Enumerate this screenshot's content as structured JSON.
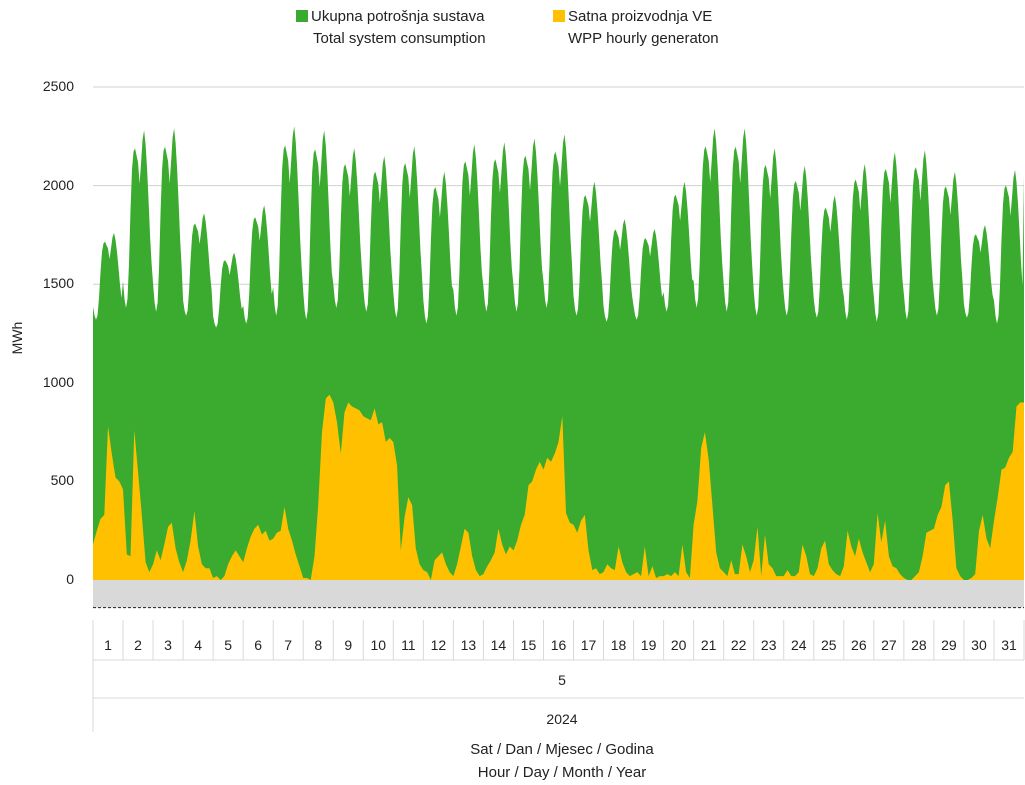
{
  "legend": [
    {
      "swatch_color": "#3aab2e",
      "line1": "Ukupna potrošnja sustava",
      "line2": "Total system consumption"
    },
    {
      "swatch_color": "#ffc000",
      "line1": "Satna proizvodnja VE",
      "line2": "WPP hourly generaton"
    }
  ],
  "chart_data": {
    "type": "area",
    "title": "",
    "ylabel": "MWh",
    "xlabel_line1": "Sat / Dan / Mjesec / Godina",
    "xlabel_line2": "Hour / Day / Month / Year",
    "month_label": "5",
    "year_label": "2024",
    "yticks": [
      "0",
      "500",
      "1000",
      "1500",
      "2000",
      "2500"
    ],
    "ylim": [
      -150,
      2500
    ],
    "negative_band": [
      -140,
      0
    ],
    "dashed_reference": -140,
    "grid": true,
    "categories": [
      "1",
      "2",
      "3",
      "4",
      "5",
      "6",
      "7",
      "8",
      "9",
      "10",
      "11",
      "12",
      "13",
      "14",
      "15",
      "16",
      "17",
      "18",
      "19",
      "20",
      "21",
      "22",
      "23",
      "24",
      "25",
      "26",
      "27",
      "28",
      "29",
      "30",
      "31"
    ],
    "series": [
      {
        "name": "Ukupna potrošnja sustava / Total system consumption",
        "color": "#3aab2e",
        "daily_min": [
          1320,
          1380,
          1360,
          1340,
          1280,
          1300,
          1340,
          1320,
          1380,
          1360,
          1330,
          1300,
          1340,
          1360,
          1360,
          1380,
          1340,
          1310,
          1320,
          1360,
          1380,
          1360,
          1340,
          1340,
          1330,
          1320,
          1310,
          1320,
          1340,
          1330,
          1300
        ],
        "daily_peak": [
          1760,
          2280,
          2290,
          1860,
          1660,
          1900,
          2300,
          2280,
          2190,
          2150,
          2200,
          2070,
          2210,
          2220,
          2240,
          2260,
          2020,
          1830,
          1780,
          2020,
          2290,
          2290,
          2190,
          2100,
          1950,
          2110,
          2170,
          2180,
          2070,
          1800,
          2080
        ]
      },
      {
        "name": "Satna proizvodnja VE / WPP hourly generaton",
        "color": "#ffc000",
        "daily_values": [
          [
            180,
            250,
            310,
            330,
            780,
            640,
            520,
            500
          ],
          [
            460,
            130,
            120,
            760,
            550,
            330,
            90,
            40
          ],
          [
            80,
            150,
            100,
            180,
            270,
            290,
            160,
            90
          ],
          [
            40,
            100,
            200,
            350,
            170,
            80,
            60,
            60
          ],
          [
            10,
            20,
            0,
            20,
            80,
            120,
            150,
            120
          ],
          [
            90,
            160,
            220,
            260,
            280,
            230,
            250,
            200
          ],
          [
            210,
            240,
            250,
            370,
            260,
            200,
            130,
            70
          ],
          [
            10,
            10,
            0,
            120,
            380,
            750,
            920,
            940
          ],
          [
            900,
            800,
            640,
            850,
            900,
            880,
            870,
            860
          ],
          [
            830,
            820,
            810,
            870,
            790,
            800,
            700,
            720
          ],
          [
            700,
            580,
            150,
            320,
            420,
            380,
            160,
            80
          ],
          [
            50,
            40,
            0,
            100,
            120,
            140,
            80,
            40
          ],
          [
            20,
            80,
            170,
            260,
            240,
            120,
            50,
            20
          ],
          [
            30,
            70,
            100,
            140,
            260,
            180,
            130,
            170
          ],
          [
            150,
            200,
            280,
            330,
            480,
            500,
            560,
            600
          ],
          [
            560,
            620,
            600,
            640,
            700,
            830,
            340,
            290
          ],
          [
            280,
            240,
            300,
            330,
            150,
            50,
            60,
            30
          ],
          [
            40,
            80,
            60,
            50,
            170,
            90,
            40,
            20
          ],
          [
            30,
            40,
            20,
            170,
            20,
            70,
            10,
            20
          ],
          [
            20,
            30,
            20,
            40,
            20,
            180,
            40,
            10
          ],
          [
            280,
            400,
            670,
            750,
            610,
            380,
            140,
            60
          ],
          [
            40,
            20,
            100,
            30,
            30,
            180,
            120,
            40
          ],
          [
            100,
            270,
            20,
            230,
            80,
            60,
            20,
            20
          ],
          [
            20,
            50,
            20,
            20,
            40,
            180,
            120,
            30
          ],
          [
            20,
            60,
            160,
            200,
            80,
            50,
            30,
            20
          ],
          [
            70,
            250,
            170,
            120,
            210,
            140,
            90,
            40
          ],
          [
            80,
            340,
            190,
            300,
            120,
            70,
            60,
            30
          ],
          [
            10,
            0,
            0,
            20,
            40,
            120,
            240,
            250
          ],
          [
            260,
            330,
            370,
            480,
            500,
            300,
            60,
            20
          ],
          [
            0,
            0,
            10,
            30,
            250,
            330,
            210,
            160
          ],
          [
            300,
            420,
            560,
            570,
            620,
            650,
            880,
            900
          ]
        ]
      }
    ]
  }
}
